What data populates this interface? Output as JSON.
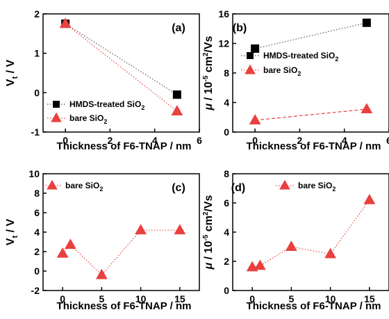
{
  "chart_data": [
    {
      "id": "a",
      "type": "line",
      "panel_label": "(a)",
      "xlabel": "Thickness of F6-TNAP / nm",
      "ylabel": "Vt / V",
      "ylabel_main": "V",
      "ylabel_sub": "t",
      "ylabel_rest": " / V",
      "xlim": [
        -1,
        6
      ],
      "ylim": [
        -1,
        2
      ],
      "xticks": [
        0,
        2,
        4,
        6
      ],
      "yticks": [
        -1,
        0,
        1,
        2
      ],
      "legend_position": "bottom-left",
      "series": [
        {
          "name": "HMDS-treated SiO2",
          "name_main": "HMDS-treated SiO",
          "name_sub": "2",
          "marker": "square",
          "color": "#000000",
          "line": "dotted",
          "x": [
            0,
            5
          ],
          "y": [
            1.75,
            -0.05
          ]
        },
        {
          "name": "bare SiO2",
          "name_main": "bare SiO",
          "name_sub": "2",
          "marker": "triangle",
          "color": "#e8413f",
          "line": "dotted",
          "x": [
            0,
            5
          ],
          "y": [
            1.75,
            -0.47
          ]
        }
      ]
    },
    {
      "id": "b",
      "type": "line",
      "panel_label": "(b)",
      "xlabel": "Thickness of F6-TNAP / nm",
      "ylabel": "μ / 10-5 cm2/Vs",
      "xlim": [
        -1,
        6
      ],
      "ylim": [
        0,
        16
      ],
      "xticks": [
        0,
        2,
        4,
        6
      ],
      "yticks": [
        0,
        4,
        8,
        12,
        16
      ],
      "legend_position": "center-left",
      "series": [
        {
          "name": "HMDS-treated SiO2",
          "name_main": "HMDS-treated SiO",
          "name_sub": "2",
          "marker": "square",
          "color": "#000000",
          "line": "dotted",
          "x": [
            0,
            5
          ],
          "y": [
            11.3,
            14.8
          ]
        },
        {
          "name": "bare SiO2",
          "name_main": "bare SiO",
          "name_sub": "2",
          "marker": "triangle",
          "color": "#e8413f",
          "line": "dashed",
          "x": [
            0,
            5
          ],
          "y": [
            1.6,
            3.1
          ]
        }
      ]
    },
    {
      "id": "c",
      "type": "line",
      "panel_label": "(c)",
      "xlabel": "Thickness of F6-TNAP / nm",
      "ylabel": "Vt / V",
      "ylabel_main": "V",
      "ylabel_sub": "t",
      "ylabel_rest": " / V",
      "xlim": [
        -2.5,
        17.5
      ],
      "ylim": [
        -2,
        10
      ],
      "xticks": [
        0,
        5,
        10,
        15
      ],
      "yticks": [
        -2,
        0,
        2,
        4,
        6,
        8,
        10
      ],
      "legend_position": "top-left",
      "series": [
        {
          "name": "bare SiO2",
          "name_main": "bare SiO",
          "name_sub": "2",
          "marker": "triangle",
          "color": "#e8413f",
          "line": "dotted",
          "x": [
            0,
            1,
            5,
            10,
            15
          ],
          "y": [
            1.8,
            2.7,
            -0.4,
            4.2,
            4.2
          ]
        }
      ]
    },
    {
      "id": "d",
      "type": "line",
      "panel_label": "(d)",
      "xlabel": "Thickness of F6-TNAP / nm",
      "ylabel": "μ / 10-5 cm2/Vs",
      "xlim": [
        -2.5,
        17.5
      ],
      "ylim": [
        0,
        8
      ],
      "xticks": [
        0,
        5,
        10,
        15
      ],
      "yticks": [
        0,
        2,
        4,
        6,
        8
      ],
      "legend_position": "top-center",
      "series": [
        {
          "name": "bare SiO2",
          "name_main": "bare SiO",
          "name_sub": "2",
          "marker": "triangle",
          "color": "#e8413f",
          "line": "dotted",
          "x": [
            0,
            1,
            5,
            10,
            15
          ],
          "y": [
            1.6,
            1.7,
            3.0,
            2.5,
            6.2
          ]
        }
      ]
    }
  ]
}
